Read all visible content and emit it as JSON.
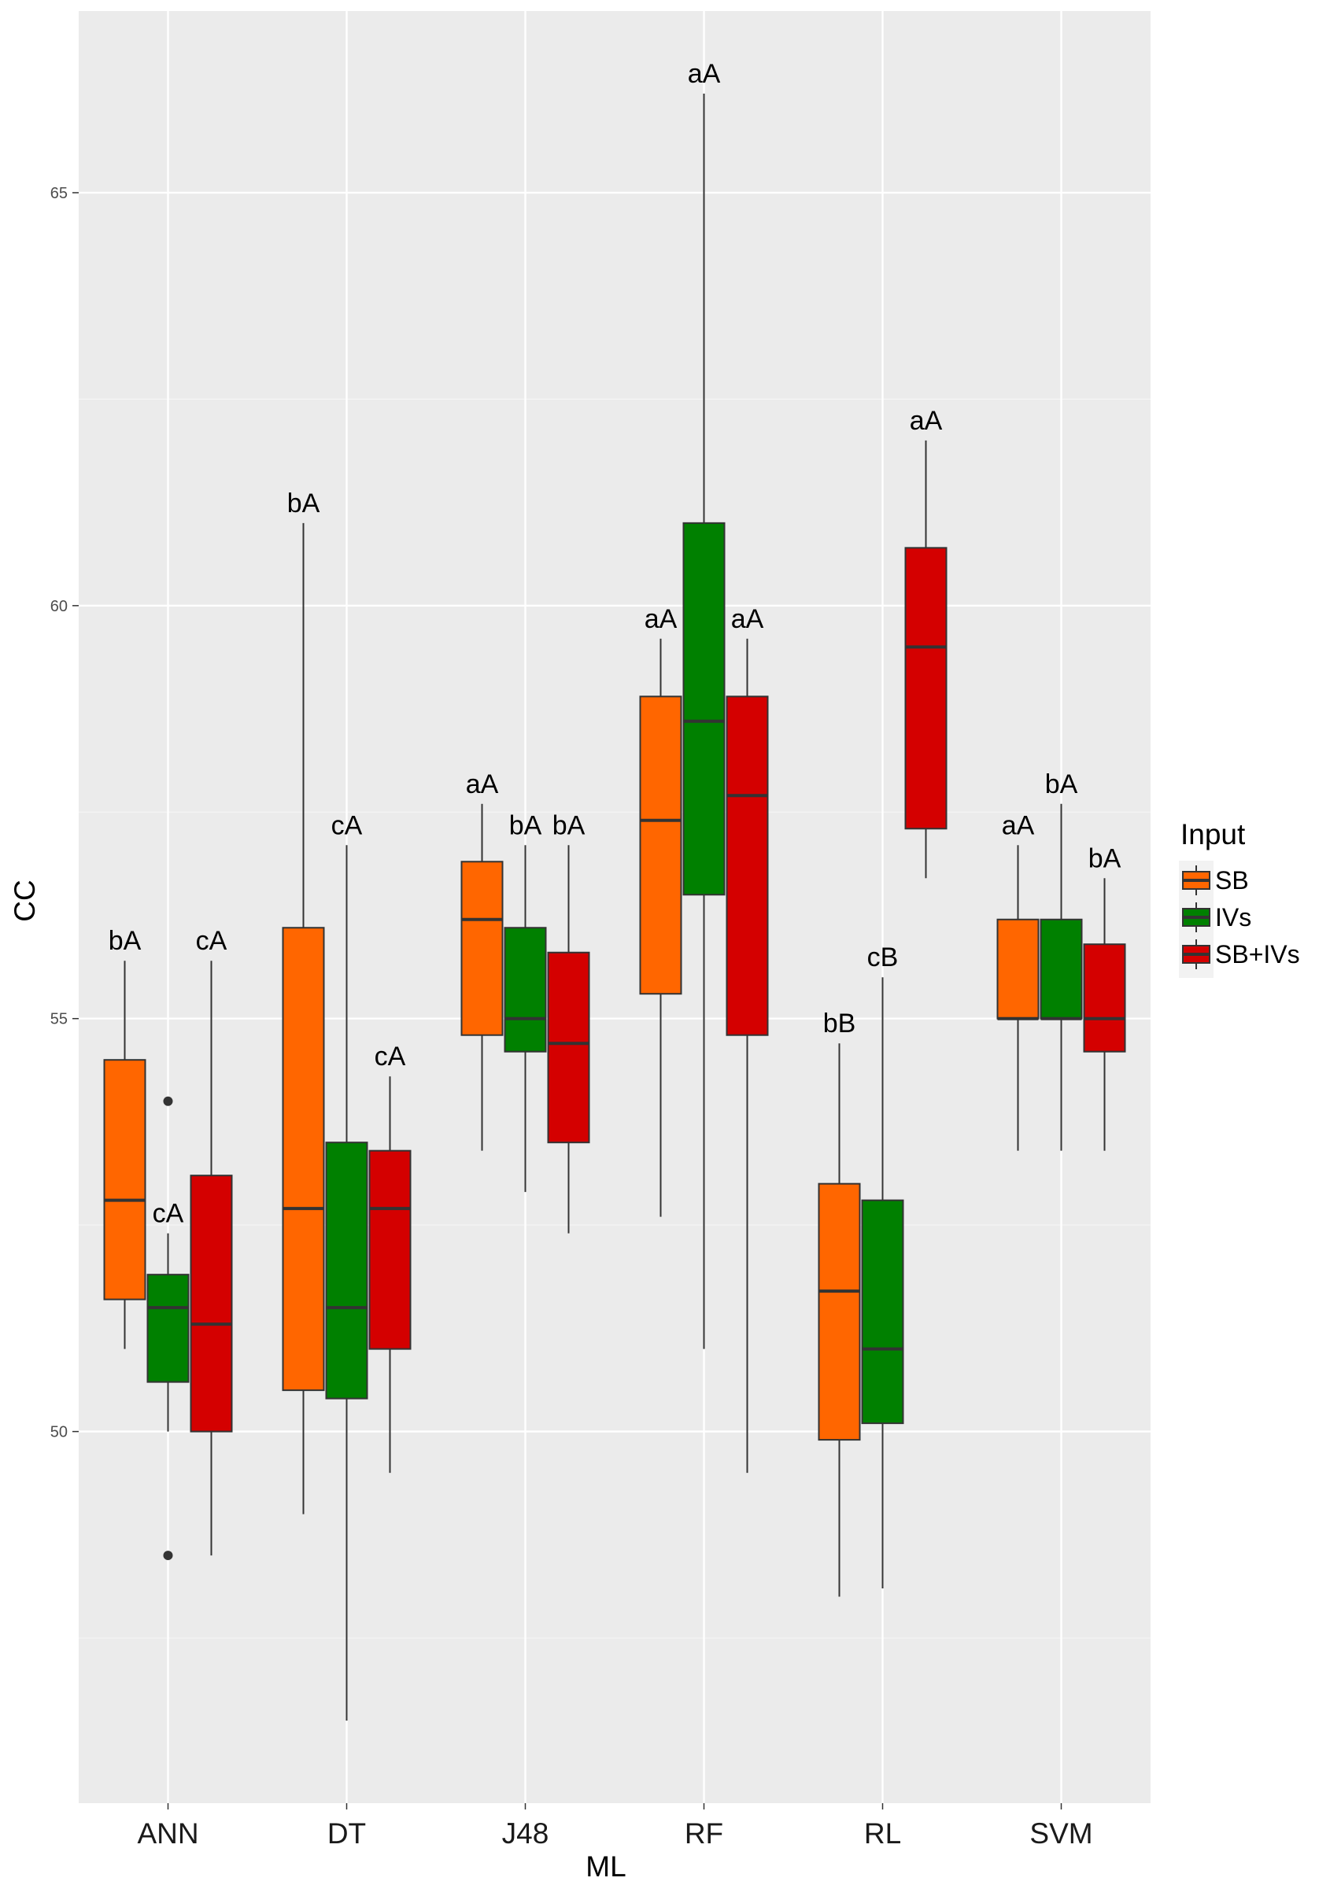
{
  "chart_data": {
    "type": "boxplot",
    "xlabel": "ML",
    "ylabel": "CC",
    "ylim": [
      45.5,
      67.2
    ],
    "yticks": [
      50,
      55,
      60,
      65
    ],
    "ytick_labels": [
      "50",
      "55",
      "60",
      "65"
    ],
    "grid": true,
    "legend": {
      "title": "Input",
      "placement": "right"
    },
    "categories": [
      "ANN",
      "DT",
      "J48",
      "RF",
      "RL",
      "SVM"
    ],
    "series": [
      {
        "name": "SB",
        "color": "#ff6600",
        "boxes": [
          {
            "category": "ANN",
            "min": 51.0,
            "q1": 51.6,
            "median": 52.8,
            "q3": 54.5,
            "max": 55.7,
            "outliers": [],
            "label": "bA"
          },
          {
            "category": "DT",
            "min": 49.0,
            "q1": 50.5,
            "median": 52.7,
            "q3": 56.1,
            "max": 61.0,
            "outliers": [],
            "label": "bA"
          },
          {
            "category": "J48",
            "min": 53.4,
            "q1": 54.8,
            "median": 56.2,
            "q3": 56.9,
            "max": 57.6,
            "outliers": [],
            "label": "aA"
          },
          {
            "category": "RF",
            "min": 52.6,
            "q1": 55.3,
            "median": 57.4,
            "q3": 58.9,
            "max": 59.6,
            "outliers": [],
            "label": "aA"
          },
          {
            "category": "RL",
            "min": 48.0,
            "q1": 49.9,
            "median": 51.7,
            "q3": 53.0,
            "max": 54.7,
            "outliers": [],
            "label": "bB"
          },
          {
            "category": "SVM",
            "min": 53.4,
            "q1": 55.0,
            "median": 55.0,
            "q3": 56.2,
            "max": 57.1,
            "outliers": [],
            "label": "aA"
          }
        ]
      },
      {
        "name": "IVs",
        "color": "#008000",
        "boxes": [
          {
            "category": "ANN",
            "min": 50.0,
            "q1": 50.6,
            "median": 51.5,
            "q3": 51.9,
            "max": 52.4,
            "outliers": [
              54.0,
              48.5
            ],
            "label": "cA"
          },
          {
            "category": "DT",
            "min": 46.5,
            "q1": 50.4,
            "median": 51.5,
            "q3": 53.5,
            "max": 57.1,
            "outliers": [],
            "label": "cA"
          },
          {
            "category": "J48",
            "min": 52.9,
            "q1": 54.6,
            "median": 55.0,
            "q3": 56.1,
            "max": 57.1,
            "outliers": [],
            "label": "bA"
          },
          {
            "category": "RF",
            "min": 51.0,
            "q1": 56.5,
            "median": 58.6,
            "q3": 61.0,
            "max": 66.2,
            "outliers": [],
            "label": "aA"
          },
          {
            "category": "RL",
            "min": 48.1,
            "q1": 50.1,
            "median": 51.0,
            "q3": 52.8,
            "max": 55.5,
            "outliers": [],
            "label": "cB"
          },
          {
            "category": "SVM",
            "min": 53.4,
            "q1": 55.0,
            "median": 55.0,
            "q3": 56.2,
            "max": 57.6,
            "outliers": [],
            "label": "bA"
          }
        ]
      },
      {
        "name": "SB+IVs",
        "color": "#d40000",
        "boxes": [
          {
            "category": "ANN",
            "min": 48.5,
            "q1": 50.0,
            "median": 51.3,
            "q3": 53.1,
            "max": 55.7,
            "outliers": [],
            "label": "cA"
          },
          {
            "category": "DT",
            "min": 49.5,
            "q1": 51.0,
            "median": 52.7,
            "q3": 53.4,
            "max": 54.3,
            "outliers": [],
            "label": "cA"
          },
          {
            "category": "J48",
            "min": 52.4,
            "q1": 53.5,
            "median": 54.7,
            "q3": 55.8,
            "max": 57.1,
            "outliers": [],
            "label": "bA"
          },
          {
            "category": "RF",
            "min": 49.5,
            "q1": 54.8,
            "median": 57.7,
            "q3": 58.9,
            "max": 59.6,
            "outliers": [],
            "label": "aA"
          },
          {
            "category": "RL",
            "min": 56.7,
            "q1": 57.3,
            "median": 59.5,
            "q3": 60.7,
            "max": 62.0,
            "outliers": [],
            "label": "aA"
          },
          {
            "category": "SVM",
            "min": 53.4,
            "q1": 54.6,
            "median": 55.0,
            "q3": 55.9,
            "max": 56.7,
            "outliers": [],
            "label": "bA"
          }
        ]
      }
    ]
  }
}
